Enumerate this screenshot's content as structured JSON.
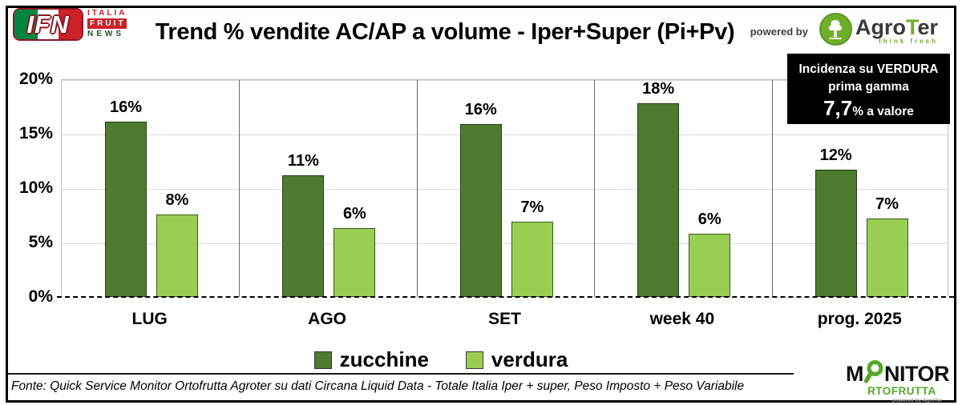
{
  "header": {
    "ifn_logo": {
      "letters": "IFN",
      "italia": "ITALIA",
      "fruit": "FRUIT",
      "news": "NEWS"
    },
    "title": "Trend % vendite AC/AP a volume -  Iper+Super (Pi+Pv)",
    "powered_by": "powered by",
    "agroter": {
      "agro": "Agro",
      "t": "T",
      "er": "er",
      "tagline": "think fresh"
    }
  },
  "info_box": {
    "line1": "Incidenza su VERDURA",
    "line2": "prima gamma",
    "value": "7,7",
    "suffix": "% a valore"
  },
  "chart_data": {
    "type": "bar",
    "title": "Trend % vendite AC/AP a volume -  Iper+Super (Pi+Pv)",
    "categories": [
      "LUG",
      "AGO",
      "SET",
      "week 40",
      "prog. 2025"
    ],
    "series": [
      {
        "name": "zucchine",
        "color": "#4e7b2f",
        "border": "#263e15",
        "values": [
          16.1,
          11.2,
          15.9,
          17.8,
          11.7
        ],
        "labels": [
          "16%",
          "11%",
          "16%",
          "18%",
          "12%"
        ]
      },
      {
        "name": "verdura",
        "color": "#9ace52",
        "border": "#35591c",
        "values": [
          7.6,
          6.3,
          6.9,
          5.8,
          7.2
        ],
        "labels": [
          "8%",
          "6%",
          "7%",
          "6%",
          "7%"
        ]
      }
    ],
    "ylim": [
      0,
      20
    ],
    "yticks": [
      "0%",
      "5%",
      "10%",
      "15%",
      "20%"
    ],
    "xlabel": "",
    "ylabel": "",
    "grid": true,
    "legend_position": "bottom"
  },
  "footer": {
    "source": "Fonte: Quick Service Monitor Ortofrutta Agroter su dati Circana Liquid Data - Totale Italia Iper + super, Peso Imposto + Peso Variabile",
    "monitor_logo": {
      "m": "M",
      "nitor": "NITOR",
      "row2": "RTOFRUTTA",
      "powered": "powered by AgroTer"
    }
  }
}
